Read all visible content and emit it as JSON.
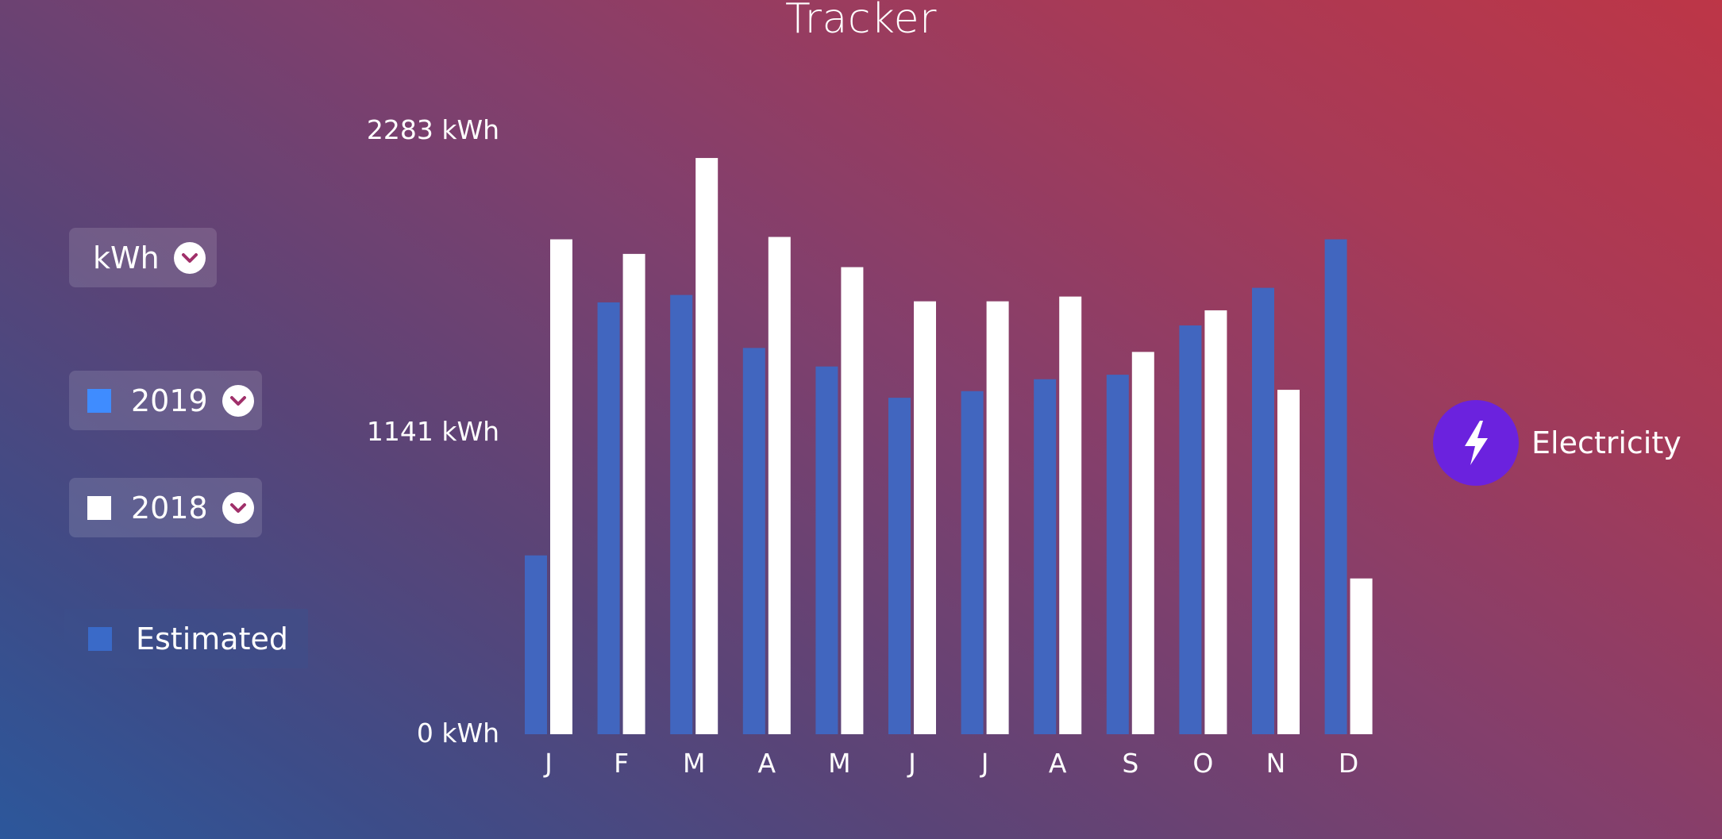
{
  "title": "Tracker",
  "unit_selector": {
    "label": "kWh"
  },
  "series_selectors": [
    {
      "label": "2019",
      "color": "#3f8cff"
    },
    {
      "label": "2018",
      "color": "#ffffff"
    }
  ],
  "estimated": {
    "label": "Estimated",
    "color": "#3a6ac8"
  },
  "legend_side": {
    "label": "Electricity",
    "icon": "lightning-bolt-icon",
    "color": "#6b22de"
  },
  "chart_data": {
    "type": "bar",
    "categories": [
      "J",
      "F",
      "M",
      "A",
      "M",
      "J",
      "J",
      "A",
      "S",
      "O",
      "N",
      "D"
    ],
    "y_tick_labels": [
      "2283 kWh",
      "1141 kWh",
      "0 kWh"
    ],
    "ylim": [
      0,
      2283
    ],
    "grid": false,
    "series": [
      {
        "name": "2019",
        "color": "#4166bf",
        "values": [
          675,
          1630,
          1658,
          1458,
          1388,
          1270,
          1295,
          1340,
          1357,
          1543,
          1685,
          1868
        ]
      },
      {
        "name": "2018",
        "color": "#ffffff",
        "values": [
          1868,
          1813,
          2175,
          1877,
          1763,
          1634,
          1634,
          1652,
          1443,
          1600,
          1300,
          588
        ]
      }
    ]
  }
}
